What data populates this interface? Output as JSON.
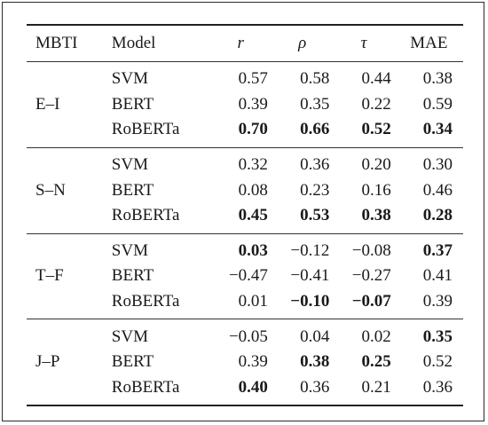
{
  "headers": [
    "MBTI",
    "Model",
    "r",
    "ρ",
    "τ",
    "MAE"
  ],
  "groups": [
    {
      "dimension": "E–I",
      "rows": [
        {
          "model": "SVM",
          "values": [
            "0.57",
            "0.58",
            "0.44",
            "0.38"
          ],
          "bold": [
            false,
            false,
            false,
            false
          ]
        },
        {
          "model": "BERT",
          "values": [
            "0.39",
            "0.35",
            "0.22",
            "0.59"
          ],
          "bold": [
            false,
            false,
            false,
            false
          ]
        },
        {
          "model": "RoBERTa",
          "values": [
            "0.70",
            "0.66",
            "0.52",
            "0.34"
          ],
          "bold": [
            true,
            true,
            true,
            true
          ]
        }
      ]
    },
    {
      "dimension": "S–N",
      "rows": [
        {
          "model": "SVM",
          "values": [
            "0.32",
            "0.36",
            "0.20",
            "0.30"
          ],
          "bold": [
            false,
            false,
            false,
            false
          ]
        },
        {
          "model": "BERT",
          "values": [
            "0.08",
            "0.23",
            "0.16",
            "0.46"
          ],
          "bold": [
            false,
            false,
            false,
            false
          ]
        },
        {
          "model": "RoBERTa",
          "values": [
            "0.45",
            "0.53",
            "0.38",
            "0.28"
          ],
          "bold": [
            true,
            true,
            true,
            true
          ]
        }
      ]
    },
    {
      "dimension": "T–F",
      "rows": [
        {
          "model": "SVM",
          "values": [
            "0.03",
            "−0.12",
            "−0.08",
            "0.37"
          ],
          "bold": [
            true,
            false,
            false,
            true
          ]
        },
        {
          "model": "BERT",
          "values": [
            "−0.47",
            "−0.41",
            "−0.27",
            "0.41"
          ],
          "bold": [
            false,
            false,
            false,
            false
          ]
        },
        {
          "model": "RoBERTa",
          "values": [
            "0.01",
            "−0.10",
            "−0.07",
            "0.39"
          ],
          "bold": [
            false,
            true,
            true,
            false
          ]
        }
      ]
    },
    {
      "dimension": "J–P",
      "rows": [
        {
          "model": "SVM",
          "values": [
            "−0.05",
            "0.04",
            "0.02",
            "0.35"
          ],
          "bold": [
            false,
            false,
            false,
            true
          ]
        },
        {
          "model": "BERT",
          "values": [
            "0.39",
            "0.38",
            "0.25",
            "0.52"
          ],
          "bold": [
            false,
            true,
            true,
            false
          ]
        },
        {
          "model": "RoBERTa",
          "values": [
            "0.40",
            "0.36",
            "0.21",
            "0.36"
          ],
          "bold": [
            true,
            false,
            false,
            false
          ]
        }
      ]
    }
  ]
}
